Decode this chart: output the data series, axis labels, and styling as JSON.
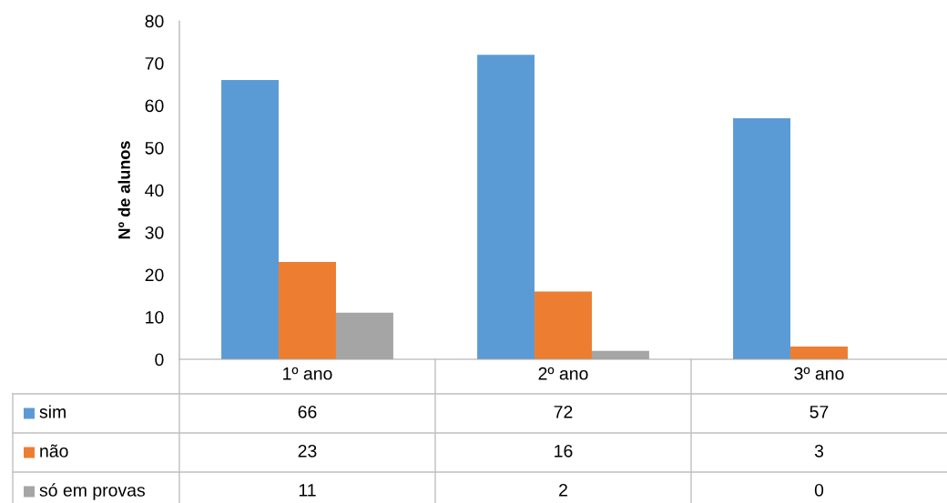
{
  "chart_data": {
    "type": "bar",
    "ylabel": "Nº de alunos",
    "categories": [
      "1º ano",
      "2º ano",
      "3º ano"
    ],
    "series": [
      {
        "name": "sim",
        "color": "#5b9bd5",
        "values": [
          66,
          72,
          57
        ]
      },
      {
        "name": "não",
        "color": "#ed7d31",
        "values": [
          23,
          16,
          3
        ]
      },
      {
        "name": "só em provas",
        "color": "#a5a5a5",
        "values": [
          11,
          2,
          0
        ]
      }
    ],
    "ylim": [
      0,
      80
    ],
    "yticks": [
      0,
      10,
      20,
      30,
      40,
      50,
      60,
      70,
      80
    ],
    "data_labels": true,
    "legend": "bottom"
  }
}
